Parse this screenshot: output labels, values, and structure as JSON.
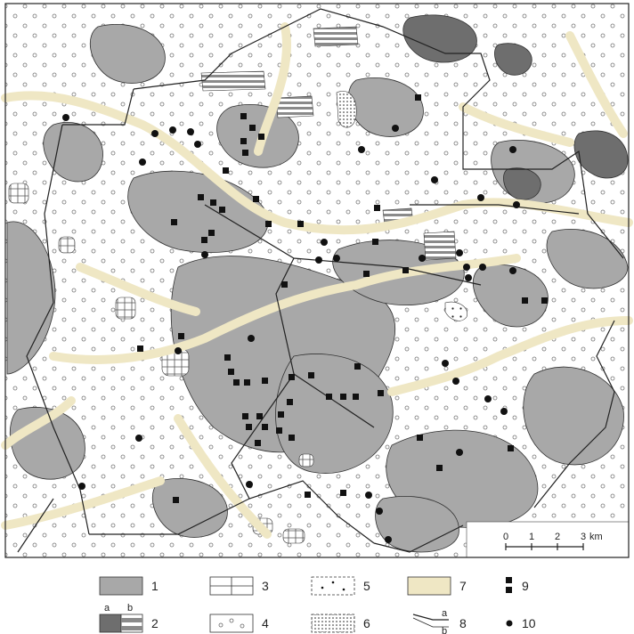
{
  "scalebar": {
    "ticks": [
      "0",
      "1",
      "2",
      "3"
    ],
    "unit": "km"
  },
  "legend": [
    {
      "number": "1",
      "symbol": "grey-fill"
    },
    {
      "number": "2",
      "symbol": "dark-grey-and-hatched",
      "sub": [
        "a",
        "b"
      ]
    },
    {
      "number": "3",
      "symbol": "grid-pattern"
    },
    {
      "number": "4",
      "symbol": "white-with-circles"
    },
    {
      "number": "5",
      "symbol": "sparse-dots"
    },
    {
      "number": "6",
      "symbol": "dense-dots"
    },
    {
      "number": "7",
      "symbol": "beige-fill"
    },
    {
      "number": "8",
      "symbol": "lines",
      "sub": [
        "a",
        "b"
      ]
    },
    {
      "number": "9",
      "symbol": "black-squares"
    },
    {
      "number": "10",
      "symbol": "black-dot"
    }
  ],
  "colors": {
    "grey": "#a8a8a8",
    "dark_grey": "#6e6e6e",
    "beige": "#efe7c4",
    "white": "#ffffff",
    "line": "#222222"
  }
}
